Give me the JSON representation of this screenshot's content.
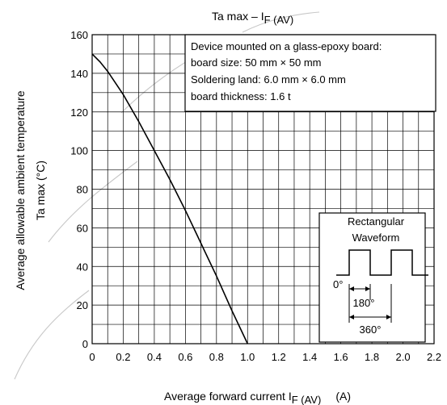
{
  "chart_data": {
    "type": "line",
    "title_main": "Ta max – I",
    "title_sub": "F (AV)",
    "ylabel_line1": "Average allowable ambient temperature",
    "ylabel_line2": "Ta max    (°C)",
    "xlabel_main": "Average forward current   I",
    "xlabel_sub": "F (AV)",
    "xlabel_unit": "(A)",
    "xlim": [
      0,
      2.2
    ],
    "ylim": [
      0,
      160
    ],
    "x_ticks": [
      "0",
      "0.2",
      "0.4",
      "0.6",
      "0.8",
      "1.0",
      "1.2",
      "1.4",
      "1.6",
      "1.8",
      "2.0",
      "2.2"
    ],
    "y_ticks": [
      "0",
      "20",
      "40",
      "60",
      "80",
      "100",
      "120",
      "140",
      "160"
    ],
    "x_tick_values": [
      0,
      0.2,
      0.4,
      0.6,
      0.8,
      1.0,
      1.2,
      1.4,
      1.6,
      1.8,
      2.0,
      2.2
    ],
    "y_tick_values": [
      0,
      20,
      40,
      60,
      80,
      100,
      120,
      140,
      160
    ],
    "grid": true,
    "grid_minor_x": 0.1,
    "grid_minor_y": 10,
    "series": [
      {
        "x": [
          0,
          0.05,
          0.1,
          0.2,
          0.3,
          0.4,
          0.5,
          0.6,
          0.7,
          0.8,
          0.9,
          1.0
        ],
        "y": [
          150,
          146,
          141,
          129,
          115,
          100,
          85,
          69,
          52,
          35,
          17,
          0
        ]
      }
    ],
    "annotation": [
      "Device mounted on a glass-epoxy board:",
      "board size: 50 mm × 50 mm",
      "Soldering land: 6.0 mm × 6.0 mm",
      "board thickness: 1.6 t"
    ],
    "inset": {
      "title_line1": "Rectangular",
      "title_line2": "Waveform",
      "label_0": "0°",
      "label_180": "180°",
      "label_360": "360°"
    }
  }
}
